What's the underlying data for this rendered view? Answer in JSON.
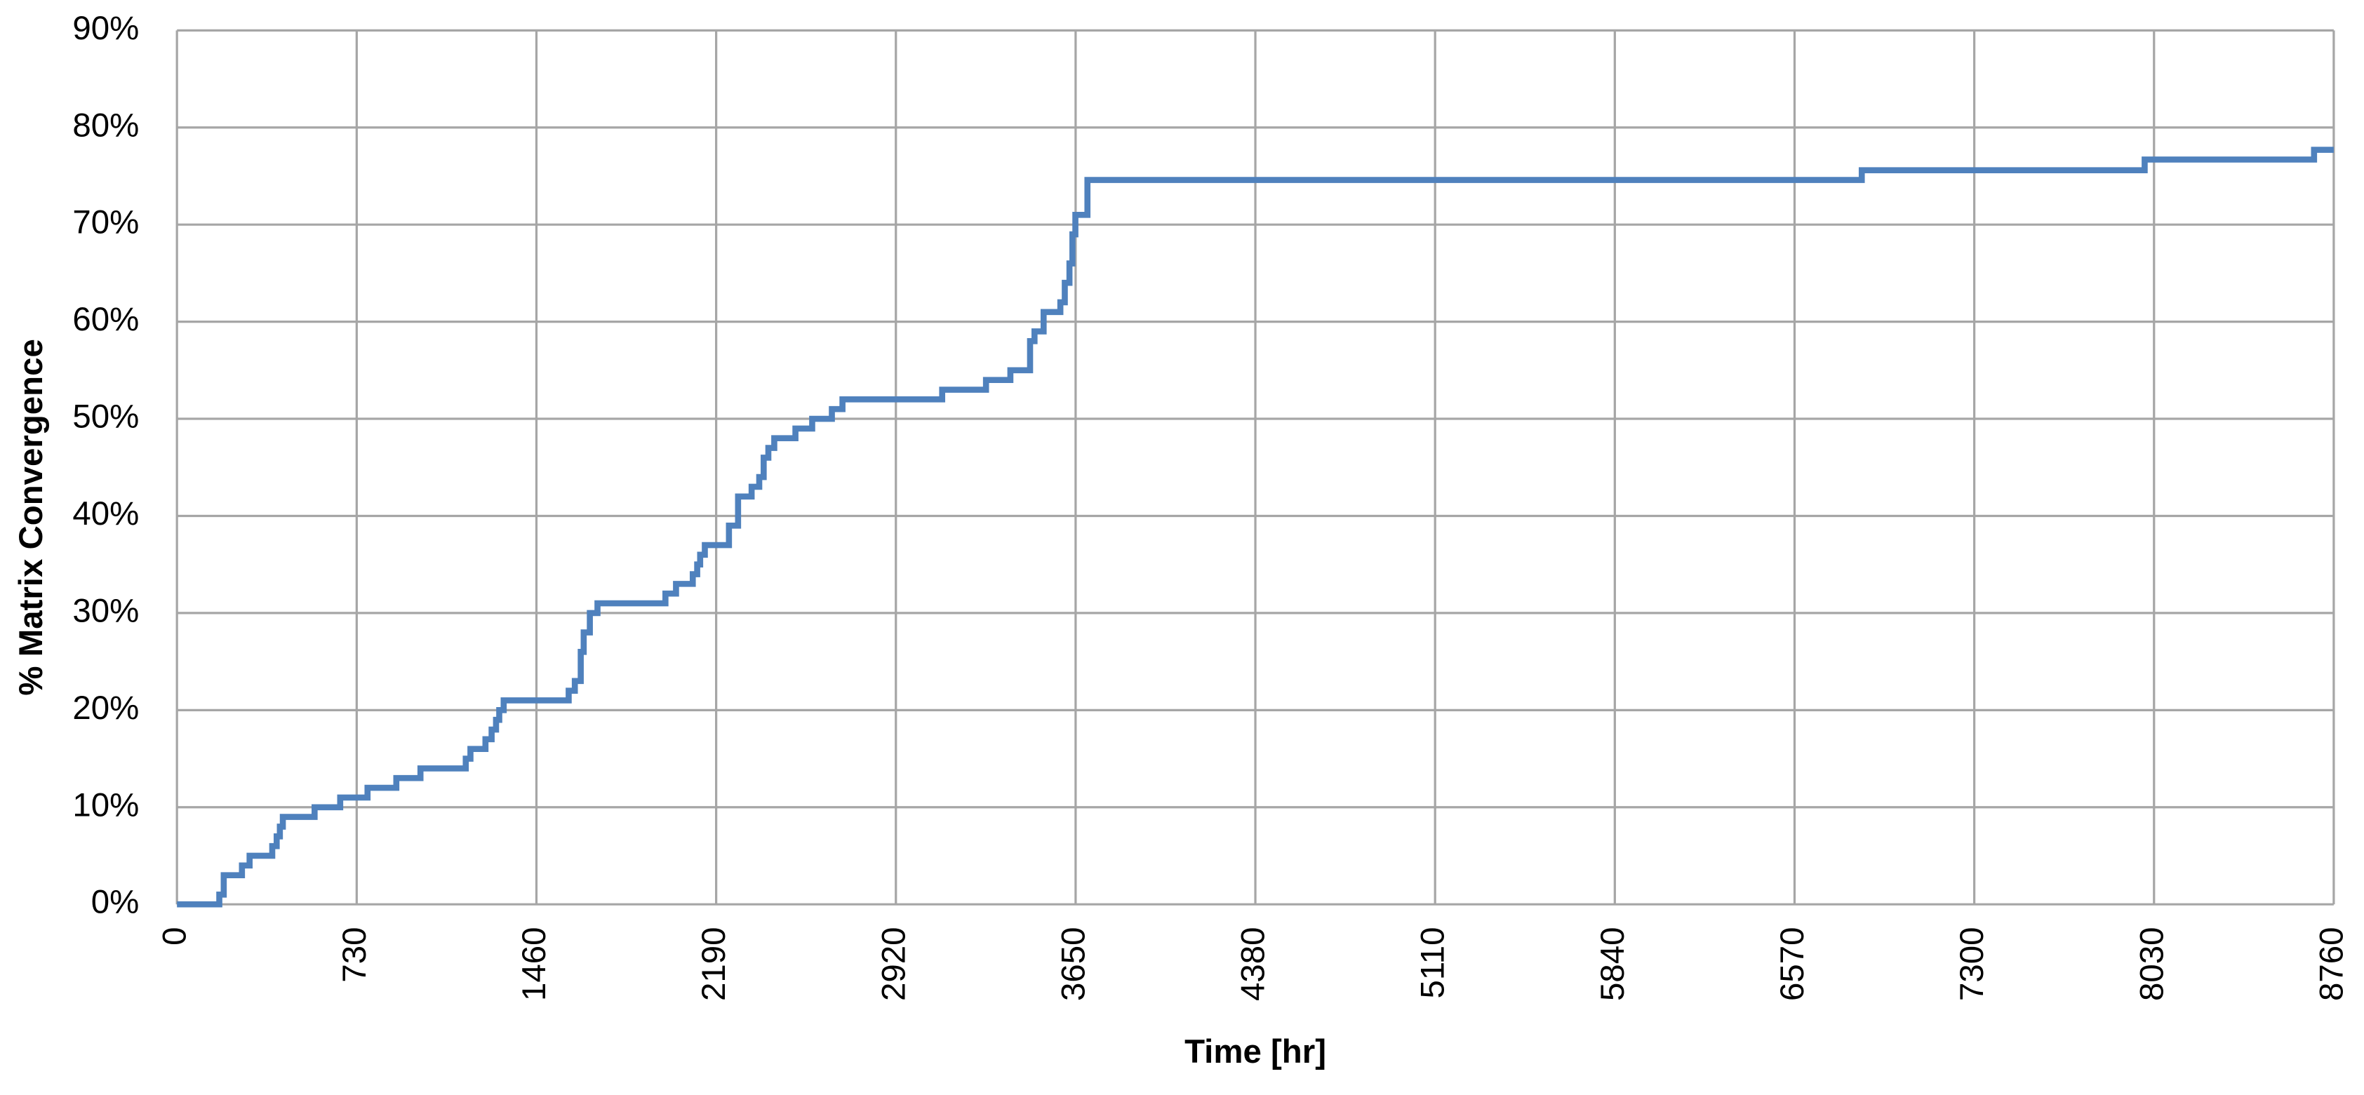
{
  "chart_data": {
    "type": "line",
    "step": "post",
    "xlabel": "Time [hr]",
    "ylabel": "% Matrix Convergence",
    "x": [
      0,
      172,
      190,
      264,
      295,
      387,
      405,
      418,
      430,
      559,
      663,
      774,
      891,
      989,
      1173,
      1192,
      1253,
      1278,
      1296,
      1309,
      1327,
      1591,
      1616,
      1640,
      1652,
      1677,
      1708,
      1984,
      2027,
      2095,
      2113,
      2125,
      2144,
      2242,
      2279,
      2334,
      2365,
      2383,
      2402,
      2426,
      2512,
      2580,
      2660,
      2703,
      3108,
      3286,
      3385,
      3465,
      3483,
      3520,
      3588,
      3606,
      3625,
      3637,
      3649,
      3698,
      6843,
      7992,
      8680,
      8760
    ],
    "series": [
      {
        "color": "#4f81bd",
        "values": [
          0,
          1,
          3,
          4,
          5,
          6,
          7,
          8,
          9,
          10,
          11,
          12,
          13,
          14,
          15,
          16,
          17,
          18,
          19,
          20,
          21,
          22,
          23,
          26,
          28,
          30,
          31,
          32,
          33,
          34,
          35,
          36,
          37,
          39,
          42,
          43,
          44,
          46,
          47,
          48,
          49,
          50,
          51,
          52,
          53,
          54,
          55,
          58,
          59,
          61,
          62,
          64,
          66,
          69,
          71,
          74.6,
          75.6,
          76.7,
          77.7,
          77.7
        ]
      }
    ],
    "xlim": [
      0,
      8760
    ],
    "xticks": [
      0,
      730,
      1460,
      2190,
      2920,
      3650,
      4380,
      5110,
      5840,
      6570,
      7300,
      8030,
      8760
    ],
    "ylim": [
      0,
      90
    ],
    "yticks": [
      {
        "value": 0,
        "label": "0%"
      },
      {
        "value": 10,
        "label": "10%"
      },
      {
        "value": 20,
        "label": "20%"
      },
      {
        "value": 30,
        "label": "30%"
      },
      {
        "value": 40,
        "label": "40%"
      },
      {
        "value": 50,
        "label": "50%"
      },
      {
        "value": 60,
        "label": "60%"
      },
      {
        "value": 70,
        "label": "70%"
      },
      {
        "value": 80,
        "label": "80%"
      },
      {
        "value": 90,
        "label": "90%"
      }
    ],
    "grid": true
  }
}
